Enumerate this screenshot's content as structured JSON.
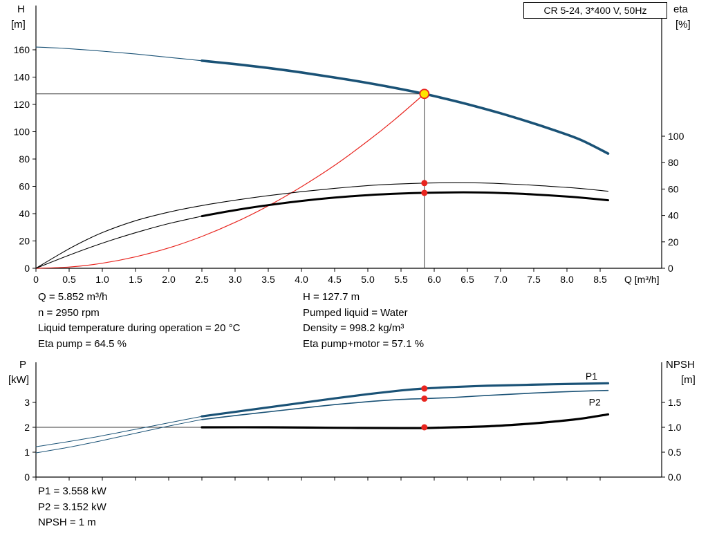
{
  "colors": {
    "blue": "#1a5276",
    "red": "#e8251f",
    "black": "#000000",
    "yellow": "#ffe400",
    "readout": "#3a3a3a"
  },
  "readout_top_left": [
    "Q = 5.852 m³/h",
    "n = 2950 rpm",
    "Liquid temperature during operation = 20 °C",
    "Eta pump = 64.5 %"
  ],
  "readout_top_right": [
    "H = 127.7 m",
    "Pumped liquid = Water",
    "Density = 998.2 kg/m³",
    "Eta pump+motor = 57.1 %"
  ],
  "readout_bottom": [
    "P1 = 3.558 kW",
    "P2 = 3.152 kW",
    "NPSH = 1 m"
  ],
  "chart_data": [
    {
      "type": "line",
      "id": "qh-eta-chart",
      "title": "CR 5-24, 3*400 V, 50Hz",
      "x_axis": {
        "label": "Q [m³/h]",
        "min": 0,
        "max": 9.4,
        "tick_values": [
          0,
          0.5,
          1,
          1.5,
          2,
          2.5,
          3,
          3.5,
          4,
          4.5,
          5,
          5.5,
          6,
          6.5,
          7,
          7.5,
          8,
          8.5
        ],
        "tick_labels": [
          "0",
          "0.5",
          "1.0",
          "1.5",
          "2.0",
          "2.5",
          "3.0",
          "3.5",
          "4.0",
          "4.5",
          "5.0",
          "5.5",
          "6.0",
          "6.5",
          "7.0",
          "7.5",
          "8.0",
          "8.5"
        ]
      },
      "y_left": {
        "axis": "H",
        "letter": "H",
        "unit": "[m]",
        "min": 0,
        "max": 192,
        "tick_values": [
          0,
          20,
          40,
          60,
          80,
          100,
          120,
          140,
          160
        ],
        "tick_labels": [
          "0",
          "20",
          "40",
          "60",
          "80",
          "100",
          "120",
          "140",
          "160"
        ]
      },
      "y_right": {
        "axis": "ETA",
        "letter": "eta",
        "unit": "[%]",
        "min": 0,
        "max": 199,
        "tick_values": [
          0,
          20,
          40,
          60,
          80,
          100
        ],
        "tick_labels": [
          "0",
          "20",
          "40",
          "60",
          "80",
          "100"
        ]
      },
      "series": [
        {
          "id": "duty-flow-vline",
          "axis": "H",
          "color": "readout",
          "width": 1,
          "points": [
            [
              5.852,
              0
            ],
            [
              5.852,
              127.7
            ]
          ]
        },
        {
          "id": "duty-head-hline",
          "axis": "H",
          "color": "readout",
          "width": 1,
          "points": [
            [
              0,
              127.7
            ],
            [
              5.852,
              127.7
            ]
          ]
        },
        {
          "id": "system-curve",
          "axis": "H",
          "color": "red",
          "width": 1.2,
          "points": [
            [
              0,
              0
            ],
            [
              0.5,
              0.9
            ],
            [
              1,
              3.7
            ],
            [
              1.5,
              8.4
            ],
            [
              2,
              14.9
            ],
            [
              2.5,
              23.3
            ],
            [
              3,
              33.6
            ],
            [
              3.5,
              45.7
            ],
            [
              4,
              59.7
            ],
            [
              4.5,
              75.4
            ],
            [
              5,
              93.2
            ],
            [
              5.4,
              108.7
            ],
            [
              5.852,
              127.7
            ]
          ]
        },
        {
          "id": "eta-pump-curve",
          "axis": "ETA",
          "color": "black",
          "width": 1.1,
          "points": [
            [
              0,
              0
            ],
            [
              0.3,
              9
            ],
            [
              0.6,
              17.5
            ],
            [
              1,
              27
            ],
            [
              1.5,
              36
            ],
            [
              2,
              42.5
            ],
            [
              2.5,
              47.5
            ],
            [
              3,
              51.5
            ],
            [
              3.5,
              55
            ],
            [
              4,
              58
            ],
            [
              4.5,
              60.5
            ],
            [
              5,
              62.6
            ],
            [
              5.4,
              63.7
            ],
            [
              5.852,
              64.5
            ],
            [
              6.3,
              64.8
            ],
            [
              6.7,
              64.6
            ],
            [
              7.1,
              63.9
            ],
            [
              7.5,
              62.9
            ],
            [
              8,
              61.2
            ],
            [
              8.3,
              60
            ],
            [
              8.62,
              58.3
            ]
          ]
        },
        {
          "id": "eta-pump-motor-extension",
          "axis": "ETA",
          "color": "black",
          "width": 1.1,
          "points": [
            [
              0,
              0
            ],
            [
              0.4,
              8
            ],
            [
              0.8,
              15.5
            ],
            [
              1.2,
              22.3
            ],
            [
              1.6,
              28.4
            ],
            [
              2,
              33.8
            ],
            [
              2.5,
              39.5
            ]
          ]
        },
        {
          "id": "eta-pump-motor-curve",
          "axis": "ETA",
          "color": "black",
          "width": 3,
          "points": [
            [
              2.5,
              39.5
            ],
            [
              3,
              44
            ],
            [
              3.5,
              47.8
            ],
            [
              4,
              51
            ],
            [
              4.5,
              53.5
            ],
            [
              5,
              55.4
            ],
            [
              5.5,
              56.6
            ],
            [
              5.852,
              57.1
            ],
            [
              6.3,
              57.5
            ],
            [
              6.7,
              57.4
            ],
            [
              7.1,
              56.8
            ],
            [
              7.5,
              55.9
            ],
            [
              8,
              54.3
            ],
            [
              8.3,
              53.1
            ],
            [
              8.62,
              51.5
            ]
          ]
        },
        {
          "id": "head-curve-extension",
          "axis": "H",
          "color": "blue",
          "width": 1.1,
          "points": [
            [
              0,
              162
            ],
            [
              0.5,
              160.8
            ],
            [
              1,
              159
            ],
            [
              1.5,
              156.9
            ],
            [
              2,
              154.5
            ],
            [
              2.5,
              152
            ]
          ]
        },
        {
          "id": "head-curve",
          "axis": "H",
          "color": "blue",
          "width": 3.6,
          "points": [
            [
              2.5,
              152
            ],
            [
              3,
              149.5
            ],
            [
              3.5,
              146.7
            ],
            [
              4,
              143.4
            ],
            [
              4.5,
              139.7
            ],
            [
              5,
              135.7
            ],
            [
              5.5,
              131.2
            ],
            [
              5.852,
              127.7
            ],
            [
              6.2,
              123.8
            ],
            [
              6.6,
              118.9
            ],
            [
              7,
              113.5
            ],
            [
              7.4,
              107.6
            ],
            [
              7.8,
              101.2
            ],
            [
              8.2,
              94.2
            ],
            [
              8.62,
              84
            ]
          ]
        }
      ],
      "markers": [
        {
          "id": "duty-point",
          "axis": "H",
          "q": 5.852,
          "value": 127.7,
          "style": "duty"
        },
        {
          "id": "eta-pump-dot",
          "axis": "ETA",
          "q": 5.852,
          "value": 64.5,
          "style": "dot"
        },
        {
          "id": "eta-pump-motor-dot",
          "axis": "ETA",
          "q": 5.852,
          "value": 57.1,
          "style": "dot"
        }
      ],
      "labels": []
    },
    {
      "type": "line",
      "id": "power-npsh-chart",
      "title": "",
      "x_axis": {
        "label": "",
        "min": 0,
        "max": 9.4,
        "tick_values": [
          0,
          0.5,
          1,
          1.5,
          2,
          2.5,
          3,
          3.5,
          4,
          4.5,
          5,
          5.5,
          6,
          6.5,
          7,
          7.5,
          8,
          8.5
        ],
        "tick_labels": [
          "0",
          "0.5",
          "1.0",
          "1.5",
          "2.0",
          "2.5",
          "3.0",
          "3.5",
          "4.0",
          "4.5",
          "5.0",
          "5.5",
          "6.0",
          "6.5",
          "7.0",
          "7.5",
          "8.0",
          "8.5"
        ]
      },
      "y_left": {
        "axis": "P",
        "letter": "P",
        "unit": "[kW]",
        "min": 0,
        "max": 4.6,
        "tick_values": [
          0,
          1,
          2,
          3
        ],
        "tick_labels": [
          "0",
          "1",
          "2",
          "3"
        ]
      },
      "y_right": {
        "axis": "N",
        "letter": "NPSH",
        "unit": "[m]",
        "min": 0,
        "max": 2.3,
        "tick_values": [
          0,
          0.5,
          1,
          1.5
        ],
        "tick_labels": [
          "0.0",
          "0.5",
          "1.0",
          "1.5"
        ]
      },
      "series": [
        {
          "id": "npsh-hline",
          "axis": "N",
          "color": "readout",
          "width": 1,
          "points": [
            [
              0,
              1
            ],
            [
              5.852,
              1
            ]
          ]
        },
        {
          "id": "p1-curve-extension",
          "axis": "P",
          "color": "blue",
          "width": 1,
          "points": [
            [
              0,
              1.22
            ],
            [
              0.5,
              1.43
            ],
            [
              1,
              1.66
            ],
            [
              1.5,
              1.92
            ],
            [
              2,
              2.18
            ],
            [
              2.5,
              2.44
            ]
          ]
        },
        {
          "id": "p2-curve-extension",
          "axis": "P",
          "color": "blue",
          "width": 1,
          "points": [
            [
              0,
              0.97
            ],
            [
              0.5,
              1.2
            ],
            [
              1,
              1.47
            ],
            [
              1.5,
              1.76
            ],
            [
              2,
              2.05
            ],
            [
              2.5,
              2.31
            ]
          ]
        },
        {
          "id": "p2-curve",
          "axis": "P",
          "color": "blue",
          "width": 1.6,
          "points": [
            [
              2.5,
              2.31
            ],
            [
              3,
              2.47
            ],
            [
              3.5,
              2.62
            ],
            [
              4,
              2.77
            ],
            [
              4.5,
              2.91
            ],
            [
              5,
              3.03
            ],
            [
              5.5,
              3.12
            ],
            [
              5.852,
              3.152
            ],
            [
              6.3,
              3.2
            ],
            [
              6.8,
              3.28
            ],
            [
              7.3,
              3.35
            ],
            [
              7.8,
              3.41
            ],
            [
              8.2,
              3.45
            ],
            [
              8.62,
              3.48
            ]
          ]
        },
        {
          "id": "p1-curve",
          "axis": "P",
          "color": "blue",
          "width": 3.2,
          "points": [
            [
              2.5,
              2.44
            ],
            [
              3,
              2.62
            ],
            [
              3.5,
              2.8
            ],
            [
              4,
              2.98
            ],
            [
              4.5,
              3.16
            ],
            [
              5,
              3.33
            ],
            [
              5.5,
              3.48
            ],
            [
              5.852,
              3.558
            ],
            [
              6.3,
              3.62
            ],
            [
              6.8,
              3.67
            ],
            [
              7.3,
              3.7
            ],
            [
              7.8,
              3.73
            ],
            [
              8.2,
              3.75
            ],
            [
              8.62,
              3.77
            ]
          ]
        },
        {
          "id": "npsh-curve",
          "axis": "N",
          "color": "black",
          "width": 3.2,
          "points": [
            [
              2.5,
              1.0
            ],
            [
              3.5,
              1.0
            ],
            [
              4.5,
              0.99
            ],
            [
              5.5,
              0.985
            ],
            [
              5.852,
              0.985
            ],
            [
              6.3,
              1.0
            ],
            [
              6.8,
              1.02
            ],
            [
              7.2,
              1.05
            ],
            [
              7.6,
              1.09
            ],
            [
              8,
              1.14
            ],
            [
              8.3,
              1.19
            ],
            [
              8.62,
              1.26
            ]
          ]
        }
      ],
      "markers": [
        {
          "id": "p1-dot",
          "axis": "P",
          "q": 5.852,
          "value": 3.558,
          "style": "dot"
        },
        {
          "id": "p2-dot",
          "axis": "P",
          "q": 5.852,
          "value": 3.152,
          "style": "dot"
        },
        {
          "id": "npsh-dot",
          "axis": "N",
          "q": 5.852,
          "value": 1.0,
          "style": "dot"
        }
      ],
      "labels": [
        {
          "id": "p1-curve-label",
          "text": "P1",
          "axis": "P",
          "q": 8.28,
          "value": 3.92,
          "color": "blue"
        },
        {
          "id": "p2-curve-label",
          "text": "P2",
          "axis": "P",
          "q": 8.33,
          "value": 2.87,
          "color": "blue"
        }
      ]
    }
  ]
}
